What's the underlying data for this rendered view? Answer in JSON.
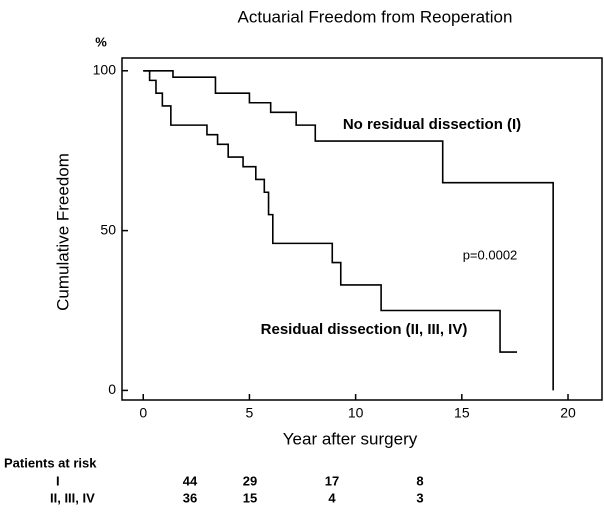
{
  "chart_data": {
    "type": "line",
    "title": "Actuarial Freedom from Reoperation",
    "y_unit": "%",
    "y_label": "Cumulative Freedom",
    "x_label": "Year after surgery",
    "xlim": [
      -1,
      21.6
    ],
    "ylim": [
      -3,
      104
    ],
    "xticks": [
      0,
      5,
      10,
      15,
      20
    ],
    "yticks": [
      0,
      50,
      100
    ],
    "grid": false,
    "series": [
      {
        "name": "No residual dissection (I)",
        "color": "#000000",
        "x": [
          0,
          1.4,
          1.4,
          3.4,
          3.4,
          5.0,
          5.0,
          6.0,
          6.0,
          7.2,
          7.2,
          8.1,
          8.1,
          14.1,
          14.1,
          19.3,
          19.3
        ],
        "values": [
          100,
          100,
          98,
          98,
          93,
          93,
          90,
          90,
          87,
          87,
          83,
          83,
          78,
          78,
          65,
          65,
          0
        ]
      },
      {
        "name": "Residual dissection (II, III, IV)",
        "color": "#000000",
        "x": [
          0,
          0.3,
          0.3,
          0.6,
          0.6,
          0.9,
          0.9,
          1.3,
          1.3,
          3.0,
          3.0,
          3.5,
          3.5,
          4.0,
          4.0,
          4.7,
          4.7,
          5.3,
          5.3,
          5.7,
          5.7,
          5.9,
          5.9,
          6.1,
          6.1,
          8.9,
          8.9,
          9.3,
          9.3,
          11.2,
          11.2,
          16.8,
          16.8,
          17.6
        ],
        "values": [
          100,
          100,
          97,
          97,
          93,
          93,
          89,
          89,
          83,
          83,
          80,
          80,
          77,
          77,
          73,
          73,
          70,
          70,
          66,
          66,
          62,
          62,
          55,
          55,
          46,
          46,
          40,
          40,
          33,
          33,
          25,
          25,
          12,
          12
        ]
      }
    ],
    "p_value": "p=0.0002",
    "risk_table": {
      "title": "Patients at risk",
      "rows": [
        {
          "label": "I",
          "values": [
            "44",
            "29",
            "17",
            "8"
          ]
        },
        {
          "label": "II, III, IV",
          "values": [
            "36",
            "15",
            "4",
            "3"
          ]
        }
      ]
    }
  }
}
